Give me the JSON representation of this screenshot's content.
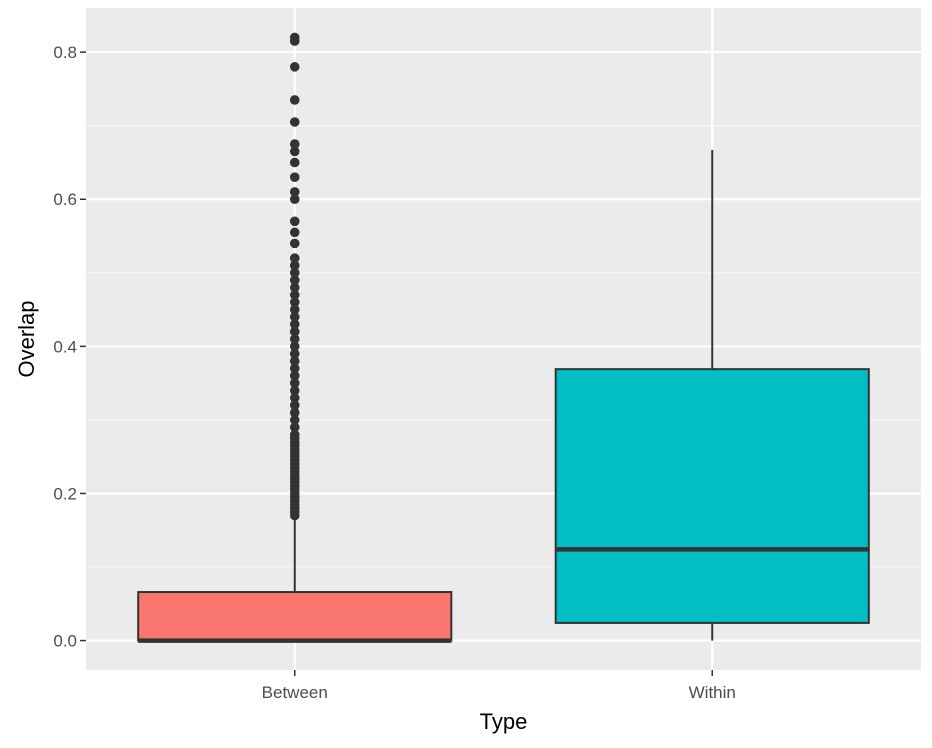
{
  "chart_data": {
    "type": "boxplot",
    "xlabel": "Type",
    "ylabel": "Overlap",
    "ylim": [
      -0.04,
      0.86
    ],
    "y_ticks": [
      0.0,
      0.2,
      0.4,
      0.6,
      0.8
    ],
    "y_tick_labels": [
      "0.0",
      "0.2",
      "0.4",
      "0.6",
      "0.8"
    ],
    "categories": [
      "Between",
      "Within"
    ],
    "grid": true,
    "legend": "none",
    "background": "#ebebeb",
    "boxes": [
      {
        "category": "Between",
        "fill": "#f8766d",
        "min": 0.0,
        "q1": 0.0,
        "median": 0.0,
        "q3": 0.066,
        "whisker_high": 0.165,
        "outliers": [
          0.17,
          0.175,
          0.18,
          0.185,
          0.19,
          0.195,
          0.2,
          0.205,
          0.21,
          0.215,
          0.22,
          0.225,
          0.23,
          0.235,
          0.24,
          0.245,
          0.25,
          0.255,
          0.26,
          0.265,
          0.27,
          0.275,
          0.28,
          0.29,
          0.3,
          0.31,
          0.32,
          0.33,
          0.34,
          0.35,
          0.36,
          0.37,
          0.38,
          0.39,
          0.4,
          0.41,
          0.42,
          0.43,
          0.44,
          0.45,
          0.46,
          0.47,
          0.48,
          0.49,
          0.5,
          0.51,
          0.52,
          0.54,
          0.555,
          0.57,
          0.6,
          0.61,
          0.63,
          0.65,
          0.665,
          0.675,
          0.705,
          0.735,
          0.78,
          0.815,
          0.82
        ]
      },
      {
        "category": "Within",
        "fill": "#00bfc4",
        "min": 0.0,
        "q1": 0.024,
        "median": 0.124,
        "q3": 0.369,
        "whisker_high": 0.667,
        "outliers": []
      }
    ]
  }
}
